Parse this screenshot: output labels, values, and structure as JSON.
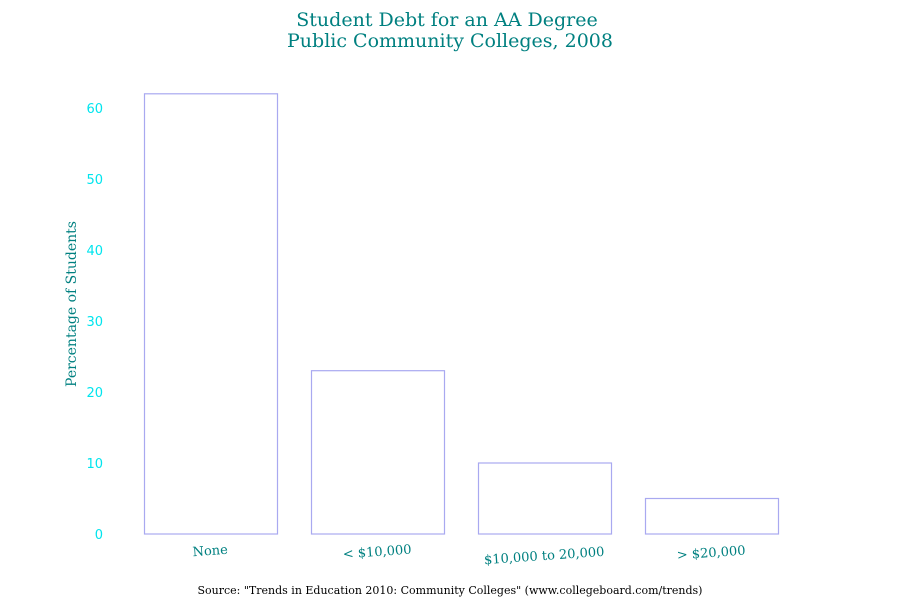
{
  "chart_data": {
    "type": "bar",
    "title_lines": [
      "Student Debt for an AA Degree",
      "Public Community Colleges, 2008"
    ],
    "xlabel": "",
    "ylabel": "Percentage of Students",
    "categories": [
      "None",
      "< $10,000",
      "$10,000 to 20,000",
      "> $20,000"
    ],
    "values": [
      62,
      23,
      10,
      5
    ],
    "yticks": [
      0,
      10,
      20,
      30,
      40,
      50,
      60
    ],
    "ylim": [
      0,
      62
    ],
    "grid": false,
    "legend": "none",
    "source": "Source: \"Trends in Education 2010: Community Colleges\" (www.collegeboard.com/trends)",
    "colors": {
      "title": "#008080",
      "ylabel": "#008080",
      "xtick_labels": "#008080",
      "ytick_labels": "#00e5ee",
      "bar_edge": "#a9a9f0",
      "bar_fill": "#ffffff",
      "source_text": "#000000"
    }
  }
}
